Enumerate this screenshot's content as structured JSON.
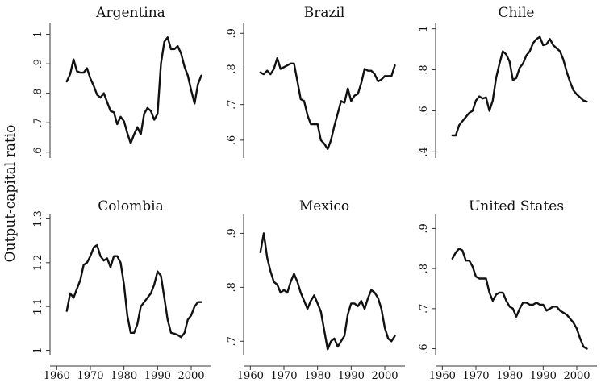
{
  "figure": {
    "ylabel": "Output-capital ratio",
    "line_color": "#111111",
    "background": "#ffffff"
  },
  "chart_data": [
    {
      "type": "line",
      "title": "Argentina",
      "xlim": [
        1958,
        2006
      ],
      "ylim": [
        0.58,
        1.04
      ],
      "yticks": [
        0.6,
        0.7,
        0.8,
        0.9,
        1.0
      ],
      "ytick_labels": [
        ".6",
        ".7",
        ".8",
        ".9",
        "1"
      ],
      "xticks": [],
      "xtick_labels": [],
      "x": [
        1963,
        1964,
        1965,
        1966,
        1967,
        1968,
        1969,
        1970,
        1971,
        1972,
        1973,
        1974,
        1975,
        1976,
        1977,
        1978,
        1979,
        1980,
        1981,
        1982,
        1983,
        1984,
        1985,
        1986,
        1987,
        1988,
        1989,
        1990,
        1991,
        1992,
        1993,
        1994,
        1995,
        1996,
        1997,
        1998,
        1999,
        2000,
        2001,
        2002,
        2003
      ],
      "y": [
        0.84,
        0.865,
        0.915,
        0.875,
        0.87,
        0.87,
        0.885,
        0.85,
        0.825,
        0.795,
        0.785,
        0.8,
        0.77,
        0.74,
        0.735,
        0.695,
        0.72,
        0.705,
        0.665,
        0.63,
        0.66,
        0.685,
        0.66,
        0.73,
        0.75,
        0.74,
        0.71,
        0.73,
        0.9,
        0.975,
        0.99,
        0.95,
        0.95,
        0.96,
        0.935,
        0.89,
        0.86,
        0.81,
        0.765,
        0.83,
        0.86
      ]
    },
    {
      "type": "line",
      "title": "Brazil",
      "xlim": [
        1958,
        2006
      ],
      "ylim": [
        0.55,
        0.93
      ],
      "yticks": [
        0.6,
        0.7,
        0.8,
        0.9
      ],
      "ytick_labels": [
        ".6",
        ".7",
        ".8",
        ".9"
      ],
      "xticks": [],
      "xtick_labels": [],
      "x": [
        1963,
        1964,
        1965,
        1966,
        1967,
        1968,
        1969,
        1970,
        1971,
        1972,
        1973,
        1974,
        1975,
        1976,
        1977,
        1978,
        1979,
        1980,
        1981,
        1982,
        1983,
        1984,
        1985,
        1986,
        1987,
        1988,
        1989,
        1990,
        1991,
        1992,
        1993,
        1994,
        1995,
        1996,
        1997,
        1998,
        1999,
        2000,
        2001,
        2002,
        2003
      ],
      "y": [
        0.79,
        0.785,
        0.795,
        0.785,
        0.8,
        0.83,
        0.8,
        0.805,
        0.81,
        0.815,
        0.815,
        0.765,
        0.715,
        0.71,
        0.67,
        0.645,
        0.645,
        0.645,
        0.6,
        0.59,
        0.575,
        0.6,
        0.64,
        0.675,
        0.71,
        0.705,
        0.745,
        0.71,
        0.725,
        0.73,
        0.76,
        0.8,
        0.795,
        0.795,
        0.785,
        0.765,
        0.77,
        0.78,
        0.78,
        0.78,
        0.81
      ]
    },
    {
      "type": "line",
      "title": "Chile",
      "xlim": [
        1958,
        2006
      ],
      "ylim": [
        0.37,
        1.03
      ],
      "yticks": [
        0.4,
        0.6,
        0.8,
        1.0
      ],
      "ytick_labels": [
        ".4",
        ".6",
        ".8",
        "1"
      ],
      "xticks": [],
      "xtick_labels": [],
      "x": [
        1963,
        1964,
        1965,
        1966,
        1967,
        1968,
        1969,
        1970,
        1971,
        1972,
        1973,
        1974,
        1975,
        1976,
        1977,
        1978,
        1979,
        1980,
        1981,
        1982,
        1983,
        1984,
        1985,
        1986,
        1987,
        1988,
        1989,
        1990,
        1991,
        1992,
        1993,
        1994,
        1995,
        1996,
        1997,
        1998,
        1999,
        2000,
        2001,
        2002,
        2003
      ],
      "y": [
        0.48,
        0.48,
        0.53,
        0.55,
        0.57,
        0.59,
        0.6,
        0.65,
        0.67,
        0.66,
        0.665,
        0.6,
        0.65,
        0.76,
        0.83,
        0.89,
        0.875,
        0.84,
        0.75,
        0.76,
        0.81,
        0.83,
        0.87,
        0.89,
        0.93,
        0.95,
        0.96,
        0.92,
        0.925,
        0.95,
        0.92,
        0.905,
        0.89,
        0.85,
        0.79,
        0.74,
        0.7,
        0.68,
        0.665,
        0.65,
        0.645
      ]
    },
    {
      "type": "line",
      "title": "Colombia",
      "xlim": [
        1958,
        2006
      ],
      "ylim": [
        0.99,
        1.31
      ],
      "yticks": [
        1.0,
        1.1,
        1.2,
        1.3
      ],
      "ytick_labels": [
        "1",
        "1.1",
        "1.2",
        "1.3"
      ],
      "xticks": [
        1960,
        1970,
        1980,
        1990,
        2000
      ],
      "xtick_labels": [
        "1960",
        "1970",
        "1980",
        "1990",
        "2000"
      ],
      "x": [
        1963,
        1964,
        1965,
        1966,
        1967,
        1968,
        1969,
        1970,
        1971,
        1972,
        1973,
        1974,
        1975,
        1976,
        1977,
        1978,
        1979,
        1980,
        1981,
        1982,
        1983,
        1984,
        1985,
        1986,
        1987,
        1988,
        1989,
        1990,
        1991,
        1992,
        1993,
        1994,
        1995,
        1996,
        1997,
        1998,
        1999,
        2000,
        2001,
        2002,
        2003
      ],
      "y": [
        1.09,
        1.13,
        1.12,
        1.14,
        1.16,
        1.195,
        1.2,
        1.215,
        1.235,
        1.24,
        1.215,
        1.205,
        1.21,
        1.19,
        1.215,
        1.215,
        1.2,
        1.15,
        1.08,
        1.04,
        1.04,
        1.06,
        1.1,
        1.11,
        1.12,
        1.13,
        1.15,
        1.18,
        1.17,
        1.12,
        1.07,
        1.04,
        1.038,
        1.035,
        1.03,
        1.04,
        1.07,
        1.08,
        1.1,
        1.11,
        1.11
      ]
    },
    {
      "type": "line",
      "title": "Mexico",
      "xlim": [
        1958,
        2006
      ],
      "ylim": [
        0.675,
        0.935
      ],
      "yticks": [
        0.7,
        0.8,
        0.9
      ],
      "ytick_labels": [
        ".7",
        ".8",
        ".9"
      ],
      "xticks": [
        1960,
        1970,
        1980,
        1990,
        2000
      ],
      "xtick_labels": [
        "1960",
        "1970",
        "1980",
        "1990",
        "2000"
      ],
      "x": [
        1963,
        1964,
        1965,
        1966,
        1967,
        1968,
        1969,
        1970,
        1971,
        1972,
        1973,
        1974,
        1975,
        1976,
        1977,
        1978,
        1979,
        1980,
        1981,
        1982,
        1983,
        1984,
        1985,
        1986,
        1987,
        1988,
        1989,
        1990,
        1991,
        1992,
        1993,
        1994,
        1995,
        1996,
        1997,
        1998,
        1999,
        2000,
        2001,
        2002,
        2003
      ],
      "y": [
        0.865,
        0.9,
        0.855,
        0.83,
        0.81,
        0.805,
        0.79,
        0.795,
        0.79,
        0.81,
        0.825,
        0.81,
        0.79,
        0.775,
        0.76,
        0.775,
        0.785,
        0.77,
        0.755,
        0.72,
        0.685,
        0.7,
        0.705,
        0.69,
        0.7,
        0.71,
        0.75,
        0.77,
        0.77,
        0.765,
        0.775,
        0.76,
        0.78,
        0.795,
        0.79,
        0.78,
        0.76,
        0.725,
        0.705,
        0.7,
        0.71
      ]
    },
    {
      "type": "line",
      "title": "United States",
      "xlim": [
        1958,
        2006
      ],
      "ylim": [
        0.585,
        0.935
      ],
      "yticks": [
        0.6,
        0.7,
        0.8,
        0.9
      ],
      "ytick_labels": [
        ".6",
        ".7",
        ".8",
        ".9"
      ],
      "xticks": [
        1960,
        1970,
        1980,
        1990,
        2000
      ],
      "xtick_labels": [
        "1960",
        "1970",
        "1980",
        "1990",
        "2000"
      ],
      "x": [
        1963,
        1964,
        1965,
        1966,
        1967,
        1968,
        1969,
        1970,
        1971,
        1972,
        1973,
        1974,
        1975,
        1976,
        1977,
        1978,
        1979,
        1980,
        1981,
        1982,
        1983,
        1984,
        1985,
        1986,
        1987,
        1988,
        1989,
        1990,
        1991,
        1992,
        1993,
        1994,
        1995,
        1996,
        1997,
        1998,
        1999,
        2000,
        2001,
        2002,
        2003
      ],
      "y": [
        0.825,
        0.84,
        0.85,
        0.845,
        0.82,
        0.82,
        0.805,
        0.78,
        0.775,
        0.775,
        0.775,
        0.74,
        0.72,
        0.735,
        0.74,
        0.74,
        0.72,
        0.705,
        0.7,
        0.68,
        0.7,
        0.715,
        0.715,
        0.71,
        0.71,
        0.715,
        0.71,
        0.71,
        0.695,
        0.7,
        0.705,
        0.705,
        0.695,
        0.69,
        0.685,
        0.675,
        0.665,
        0.65,
        0.625,
        0.605,
        0.6
      ]
    }
  ]
}
